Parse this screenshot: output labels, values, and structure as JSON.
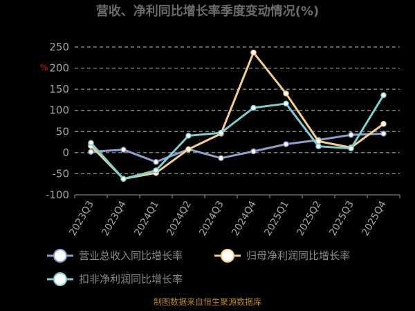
{
  "chart_data": {
    "type": "line",
    "title": "营收、净利同比增长率季度变动情况(%)",
    "ylabel": "%",
    "categories": [
      "2023Q3",
      "2023Q4",
      "2024Q1",
      "2024Q2",
      "2024Q3",
      "2024Q4",
      "2025Q1",
      "2025Q2",
      "2025Q3",
      "2025Q4"
    ],
    "yticks": [
      250,
      200,
      150,
      100,
      50,
      0,
      -50,
      -100
    ],
    "ylim": [
      -100,
      250
    ],
    "grid": true,
    "legend_position": "bottom",
    "series": [
      {
        "name": "营业总收入同比增长率",
        "color": "#8aa2d0",
        "values": [
          2,
          7,
          -22,
          8,
          -13,
          3,
          20,
          30,
          42,
          45
        ]
      },
      {
        "name": "归母净利润同比增长率",
        "color": "#f4cf8c",
        "values": [
          16,
          -62,
          -48,
          8,
          45,
          237,
          140,
          27,
          12,
          68
        ]
      },
      {
        "name": "扣非净利润同比增长率",
        "color": "#7ccfcf",
        "values": [
          23,
          -62,
          -42,
          40,
          47,
          106,
          116,
          15,
          10,
          136
        ]
      }
    ]
  },
  "source": "制图数据来自恒生聚源数据库"
}
